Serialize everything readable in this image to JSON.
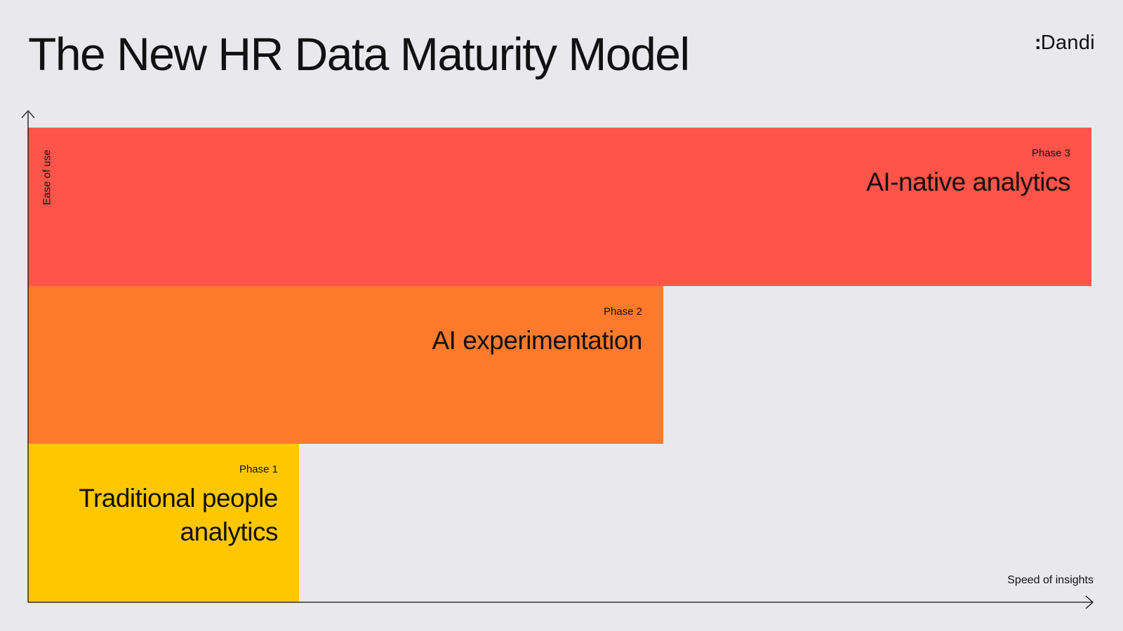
{
  "title": "The New HR Data Maturity Model",
  "logo": {
    "mark": ":",
    "text": "Dandi",
    "icon": "dandi-logo-icon"
  },
  "axes": {
    "y_label": "Ease of use",
    "x_label": "Speed of insights",
    "y_arrow_icon": "arrow-up-icon",
    "x_arrow_icon": "arrow-right-icon"
  },
  "phases": [
    {
      "label": "Phase 1",
      "name": "Traditional people analytics",
      "color": "#ffc700",
      "relative_speed": 0.25,
      "relative_ease": 0.33
    },
    {
      "label": "Phase 2",
      "name": "AI experimentation",
      "color": "#ff7a2c",
      "relative_speed": 0.6,
      "relative_ease": 0.67
    },
    {
      "label": "Phase 3",
      "name": "AI-native analytics",
      "color": "#ff5449",
      "relative_speed": 1.0,
      "relative_ease": 1.0
    }
  ]
}
